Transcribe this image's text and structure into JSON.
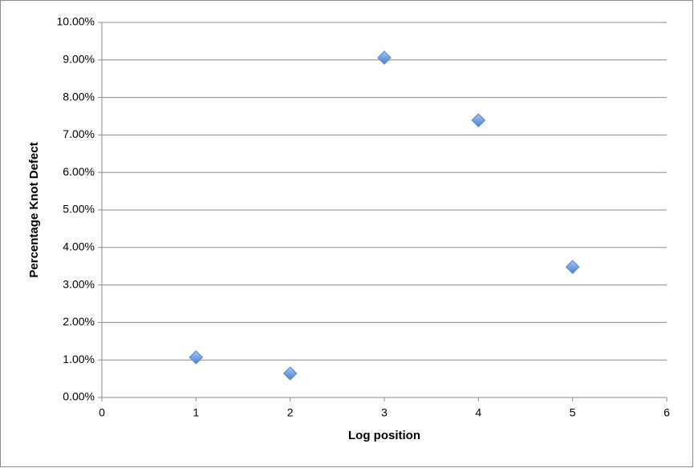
{
  "chart_data": {
    "type": "scatter",
    "x_label": "Log position",
    "y_label": "Percentage Knot Defect",
    "x": [
      1,
      2,
      3,
      4,
      5
    ],
    "values": [
      1.07,
      0.64,
      9.06,
      7.39,
      3.48
    ],
    "color": "#5b8fd8",
    "xlim": [
      0,
      6
    ],
    "xticks": [
      0,
      1,
      2,
      3,
      4,
      5,
      6
    ],
    "ylim": [
      0,
      10
    ],
    "yticks": [
      {
        "value": 0,
        "label": "0.00%"
      },
      {
        "value": 1,
        "label": "1.00%"
      },
      {
        "value": 2,
        "label": "2.00%"
      },
      {
        "value": 3,
        "label": "3.00%"
      },
      {
        "value": 4,
        "label": "4.00%"
      },
      {
        "value": 5,
        "label": "5.00%"
      },
      {
        "value": 6,
        "label": "6.00%"
      },
      {
        "value": 7,
        "label": "7.00%"
      },
      {
        "value": 8,
        "label": "8.00%"
      },
      {
        "value": 9,
        "label": "9.00%"
      },
      {
        "value": 10,
        "label": "10.00%"
      }
    ],
    "grid": true
  }
}
